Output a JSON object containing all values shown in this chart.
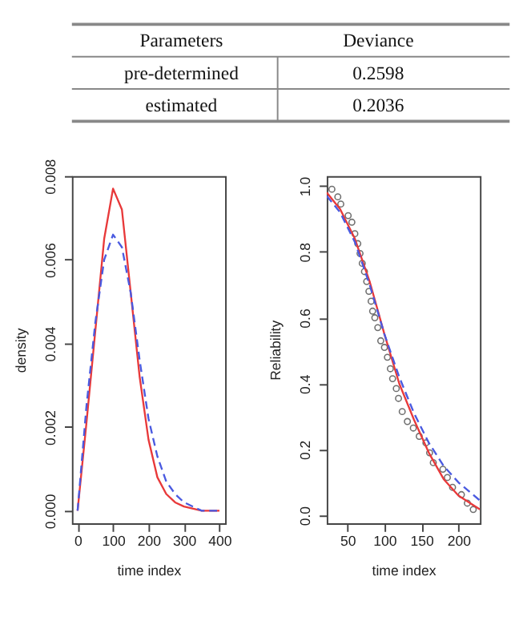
{
  "chart_data": [
    {
      "type": "other",
      "annotations": [
        "Parameters",
        "Deviance",
        "pre-determined",
        "0.2598",
        "estimated",
        "0.2036"
      ]
    },
    {
      "type": "line",
      "xlabel": "time index",
      "ylabel": "density",
      "xlim": [
        -16,
        416
      ],
      "xticks": [
        0,
        100,
        200,
        300,
        400
      ],
      "ylim": [
        -0.0003,
        0.008
      ],
      "yticks": [
        {
          "value": 0,
          "label": "0.000"
        },
        {
          "value": 0.002,
          "label": "0.002"
        },
        {
          "value": 0.004,
          "label": "0.004"
        },
        {
          "value": 0.006,
          "label": "0.006"
        },
        {
          "value": 0.008,
          "label": "0.008"
        }
      ],
      "grid": false,
      "x": [
        0,
        25,
        50,
        75,
        100,
        125,
        150,
        175,
        200,
        225,
        250,
        275,
        300,
        350,
        400
      ],
      "series": [
        {
          "color": "#e8393a",
          "line_style": "solid",
          "values": [
            0,
            0.0021,
            0.0043,
            0.0065,
            0.0077,
            0.0072,
            0.0052,
            0.0032,
            0.0017,
            0.0008,
            0.0004,
            0.0002,
            0.0001,
            0,
            0
          ]
        },
        {
          "color": "#4a5ae0",
          "line_style": "dashed",
          "values": [
            0,
            0.0025,
            0.0045,
            0.006,
            0.0066,
            0.0063,
            0.0052,
            0.0036,
            0.0022,
            0.0013,
            0.0007,
            0.0004,
            0.0002,
            0,
            0
          ]
        }
      ]
    },
    {
      "type": "line",
      "xlabel": "time index",
      "ylabel": "Reliability",
      "xlim": [
        22,
        229
      ],
      "xticks": [
        50,
        100,
        150,
        200
      ],
      "ylim": [
        -0.024,
        1.03
      ],
      "yticks": [
        {
          "value": 0,
          "label": "0.0"
        },
        {
          "value": 0.2,
          "label": "0.2"
        },
        {
          "value": 0.4,
          "label": "0.4"
        },
        {
          "value": 0.6,
          "label": "0.6"
        },
        {
          "value": 0.8,
          "label": "0.8"
        },
        {
          "value": 1,
          "label": "1.0"
        }
      ],
      "grid": false,
      "series": [
        {
          "type": "scatter",
          "marker": "circle",
          "color": "#333333",
          "x": [
            29,
            37,
            41,
            51,
            56,
            60,
            64,
            67,
            70,
            73,
            76,
            79,
            82,
            84,
            87,
            91,
            95,
            100,
            104,
            108,
            111,
            116,
            119,
            124,
            131,
            139,
            147,
            156,
            161,
            166,
            179,
            185,
            192,
            204,
            212,
            220
          ],
          "values": [
            0.99,
            0.967,
            0.945,
            0.91,
            0.89,
            0.855,
            0.825,
            0.795,
            0.765,
            0.74,
            0.71,
            0.68,
            0.65,
            0.62,
            0.6,
            0.57,
            0.53,
            0.51,
            0.48,
            0.445,
            0.415,
            0.385,
            0.355,
            0.315,
            0.285,
            0.265,
            0.24,
            0.22,
            0.19,
            0.16,
            0.14,
            0.115,
            0.085,
            0.063,
            0.037,
            0.018
          ]
        },
        {
          "type": "line",
          "line_style": "solid",
          "color": "#e8393a",
          "x": [
            22,
            40,
            60,
            80,
            100,
            120,
            140,
            160,
            180,
            200,
            229
          ],
          "values": [
            0.98,
            0.93,
            0.84,
            0.71,
            0.55,
            0.4,
            0.29,
            0.19,
            0.11,
            0.06,
            0.018
          ]
        },
        {
          "type": "line",
          "line_style": "dashed",
          "color": "#4a5ae0",
          "x": [
            22,
            40,
            60,
            80,
            100,
            120,
            140,
            160,
            180,
            200,
            229
          ],
          "values": [
            0.97,
            0.92,
            0.83,
            0.7,
            0.55,
            0.42,
            0.31,
            0.22,
            0.15,
            0.1,
            0.045
          ]
        }
      ]
    }
  ]
}
